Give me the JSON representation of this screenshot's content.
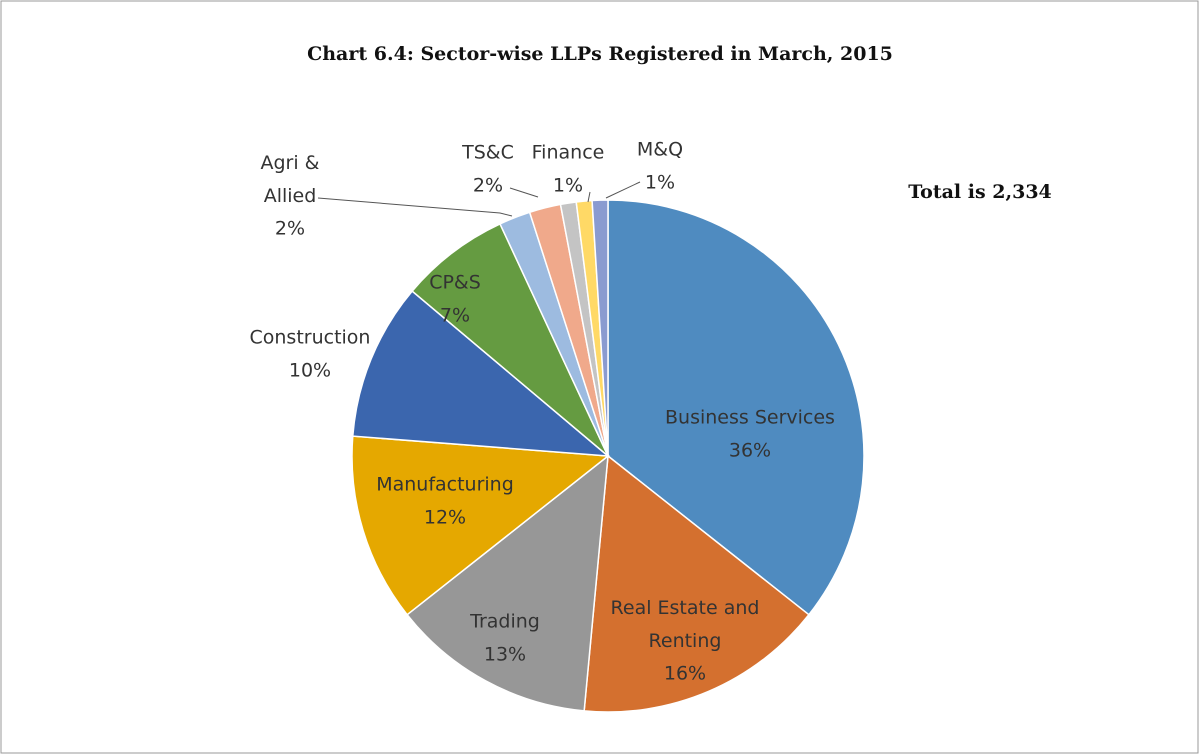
{
  "chart_data": {
    "type": "pie",
    "title": "Chart 6.4: Sector-wise LLPs Registered in March, 2015",
    "annotation": "Total is 2,334",
    "categories": [
      "Business Services",
      "Real Estate and Renting",
      "Trading",
      "Manufacturing",
      "Construction",
      "CP&S",
      "Agri & Allied",
      "TS&C",
      "Finance",
      null,
      "M&Q"
    ],
    "values": [
      36,
      16,
      13,
      12,
      10,
      7,
      2,
      2,
      1,
      1,
      1
    ],
    "value_labels": [
      "36%",
      "16%",
      "13%",
      "12%",
      "10%",
      "7%",
      "2%",
      "2%",
      "1%",
      null,
      "1%"
    ],
    "colors": [
      "#4f8bc0",
      "#d4702f",
      "#979797",
      "#e5a800",
      "#3b66ae",
      "#659b41",
      "#9dbbe0",
      "#f0a98b",
      "#c4c4c4",
      "#ffd966",
      "#8a9bd0"
    ]
  }
}
